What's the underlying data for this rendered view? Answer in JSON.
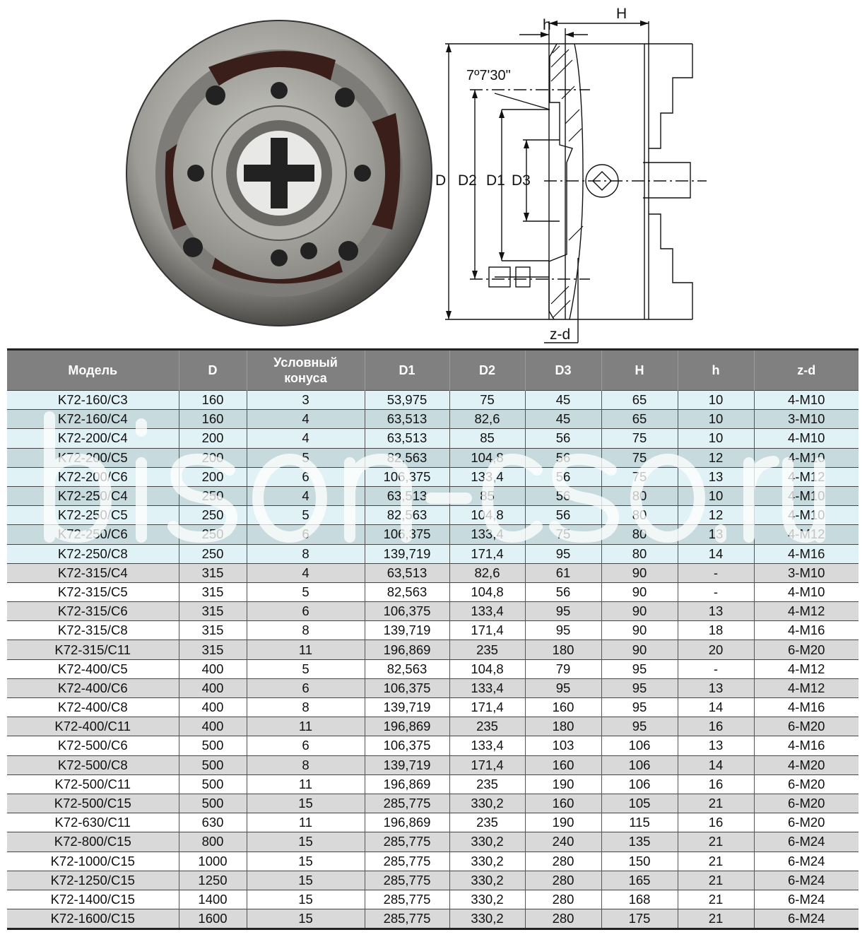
{
  "drawing": {
    "labels": {
      "H": "H",
      "h": "h",
      "angle": "7º7'30\"",
      "D": "D",
      "D2": "D2",
      "D1": "D1",
      "D3": "D3",
      "zd": "z-d"
    }
  },
  "watermark": "bison-cso.ru",
  "table": {
    "headers": [
      "Модель",
      "D",
      "Условный конуса",
      "D1",
      "D2",
      "D3",
      "H",
      "h",
      "z-d"
    ],
    "rows": [
      [
        "K72-160/C3",
        "160",
        "3",
        "53,975",
        "75",
        "45",
        "65",
        "10",
        "4-M10"
      ],
      [
        "K72-160/C4",
        "160",
        "4",
        "63,513",
        "82,6",
        "45",
        "65",
        "10",
        "3-M10"
      ],
      [
        "K72-200/C4",
        "200",
        "4",
        "63,513",
        "85",
        "56",
        "75",
        "10",
        "4-M10"
      ],
      [
        "K72-200/C5",
        "200",
        "5",
        "82,563",
        "104,8",
        "56",
        "75",
        "12",
        "4-M10"
      ],
      [
        "K72-200/C6",
        "200",
        "6",
        "106,375",
        "133,4",
        "56",
        "75",
        "13",
        "4-M12"
      ],
      [
        "K72-250/C4",
        "250",
        "4",
        "63,513",
        "85",
        "56",
        "80",
        "10",
        "4-M10"
      ],
      [
        "K72-250/C5",
        "250",
        "5",
        "82,563",
        "104,8",
        "56",
        "80",
        "12",
        "4-M10"
      ],
      [
        "K72-250/C6",
        "250",
        "6",
        "106,375",
        "133,4",
        "75",
        "80",
        "13",
        "4-M12"
      ],
      [
        "K72-250/C8",
        "250",
        "8",
        "139,719",
        "171,4",
        "95",
        "80",
        "14",
        "4-M16"
      ],
      [
        "K72-315/C4",
        "315",
        "4",
        "63,513",
        "82,6",
        "61",
        "90",
        "-",
        "3-M10"
      ],
      [
        "K72-315/C5",
        "315",
        "5",
        "82,563",
        "104,8",
        "56",
        "90",
        "-",
        "4-M10"
      ],
      [
        "K72-315/C6",
        "315",
        "6",
        "106,375",
        "133,4",
        "95",
        "90",
        "13",
        "4-M12"
      ],
      [
        "K72-315/C8",
        "315",
        "8",
        "139,719",
        "171,4",
        "95",
        "90",
        "18",
        "4-M16"
      ],
      [
        "K72-315/C11",
        "315",
        "11",
        "196,869",
        "235",
        "180",
        "90",
        "20",
        "6-M20"
      ],
      [
        "K72-400/C5",
        "400",
        "5",
        "82,563",
        "104,8",
        "79",
        "95",
        "-",
        "4-M12"
      ],
      [
        "K72-400/C6",
        "400",
        "6",
        "106,375",
        "133,4",
        "95",
        "95",
        "13",
        "4-M12"
      ],
      [
        "K72-400/C8",
        "400",
        "8",
        "139,719",
        "171,4",
        "160",
        "95",
        "14",
        "4-M16"
      ],
      [
        "K72-400/C11",
        "400",
        "11",
        "196,869",
        "235",
        "180",
        "95",
        "16",
        "6-M20"
      ],
      [
        "K72-500/C6",
        "500",
        "6",
        "106,375",
        "133,4",
        "103",
        "106",
        "13",
        "4-M16"
      ],
      [
        "K72-500/C8",
        "500",
        "8",
        "139,719",
        "171,4",
        "160",
        "106",
        "14",
        "4-M20"
      ],
      [
        "K72-500/C11",
        "500",
        "11",
        "196,869",
        "235",
        "190",
        "106",
        "16",
        "6-M20"
      ],
      [
        "K72-500/C15",
        "500",
        "15",
        "285,775",
        "330,2",
        "160",
        "105",
        "21",
        "6-M20"
      ],
      [
        "K72-630/C11",
        "630",
        "11",
        "196,869",
        "235",
        "190",
        "115",
        "16",
        "6-M20"
      ],
      [
        "K72-800/C15",
        "800",
        "15",
        "285,775",
        "330,2",
        "240",
        "135",
        "21",
        "6-M24"
      ],
      [
        "K72-1000/C15",
        "1000",
        "15",
        "285,775",
        "330,2",
        "280",
        "150",
        "21",
        "6-M24"
      ],
      [
        "K72-1250/C15",
        "1250",
        "15",
        "285,775",
        "330,2",
        "280",
        "165",
        "21",
        "6-M24"
      ],
      [
        "K72-1400/C15",
        "1400",
        "15",
        "285,775",
        "330,2",
        "280",
        "168",
        "21",
        "6-M24"
      ],
      [
        "K72-1600/C15",
        "1600",
        "15",
        "285,775",
        "330,2",
        "280",
        "175",
        "21",
        "6-M24"
      ]
    ]
  }
}
